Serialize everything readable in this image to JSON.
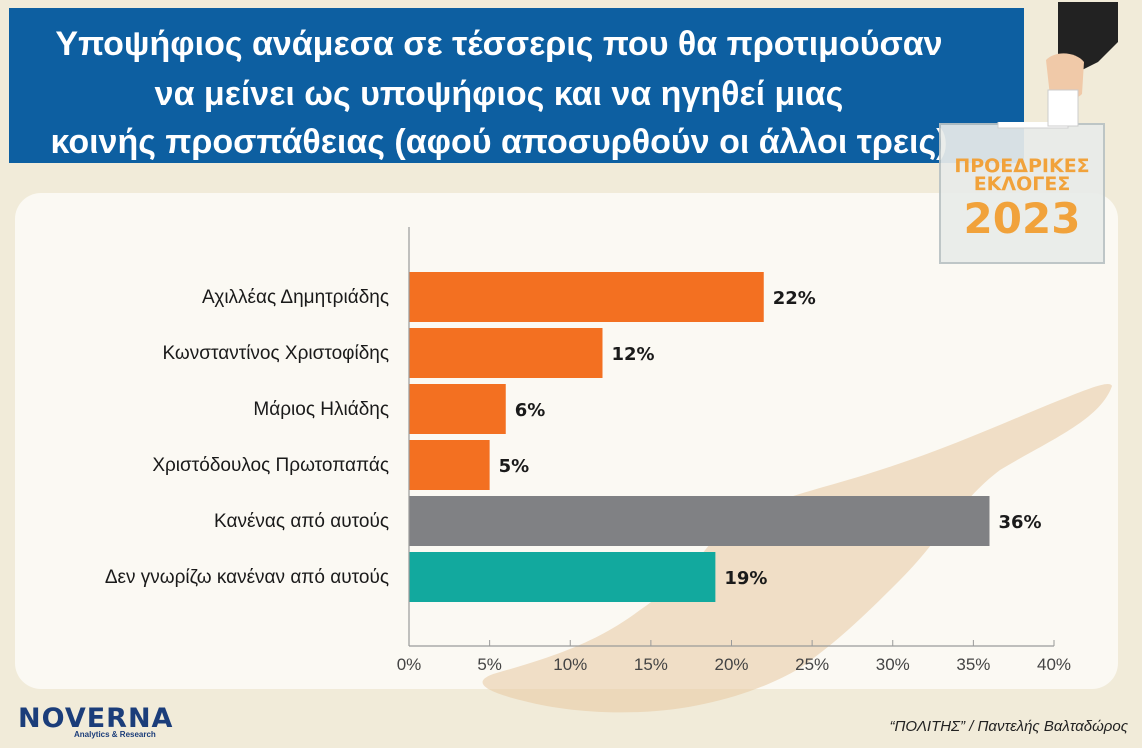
{
  "header": {
    "title_lines": [
      "Υποψήφιος ανάμεσα σε τέσσερις που θα προτιμούσαν",
      "να μείνει ως υποψήφιος και να ηγηθεί μιας",
      "κοινής προσπάθειας (αφού αποσυρθούν οι άλλοι τρεις)"
    ]
  },
  "badge": {
    "line1": "ΠΡΟΕΔΡΙΚΕΣ",
    "line2": "ΕΚΛΟΓΕΣ",
    "year": "2023"
  },
  "branding": {
    "logo_text": "NOVERNA",
    "logo_subtitle": "Analytics & Research",
    "source": "“ΠΟΛΙΤΗΣ” / Παντελής Βαλταδώρος"
  },
  "colors": {
    "title_bg": "#0d5fa1",
    "candidate_bar": "#f37021",
    "none_bar": "#808184",
    "dont_know_bar": "#12a99e",
    "badge_text": "#f1a23b",
    "logo": "#1b3d7a"
  },
  "chart_data": {
    "type": "bar",
    "orientation": "horizontal",
    "title": "Υποψήφιος ανάμεσα σε τέσσερις που θα προτιμούσαν να μείνει ως υποψήφιος και να ηγηθεί μιας κοινής προσπάθειας (αφού αποσυρθούν οι άλλοι τρεις)",
    "xlabel": "",
    "ylabel": "",
    "categories": [
      "Αχιλλέας Δημητριάδης",
      "Κωνσταντίνος Χριστοφίδης",
      "Μάριος Ηλιάδης",
      "Χριστόδουλος Πρωτοπαπάς",
      "Κανένας από αυτούς",
      "Δεν γνωρίζω κανέναν από αυτούς"
    ],
    "values": [
      22,
      12,
      6,
      5,
      36,
      19
    ],
    "value_labels": [
      "22%",
      "12%",
      "6%",
      "5%",
      "36%",
      "19%"
    ],
    "bar_colors": [
      "#f37021",
      "#f37021",
      "#f37021",
      "#f37021",
      "#808184",
      "#12a99e"
    ],
    "xlim": [
      0,
      40
    ],
    "x_ticks": [
      0,
      5,
      10,
      15,
      20,
      25,
      30,
      35,
      40
    ],
    "x_tick_labels": [
      "0%",
      "5%",
      "10%",
      "15%",
      "20%",
      "25%",
      "30%",
      "35%",
      "40%"
    ],
    "grid": false,
    "legend": "none"
  }
}
